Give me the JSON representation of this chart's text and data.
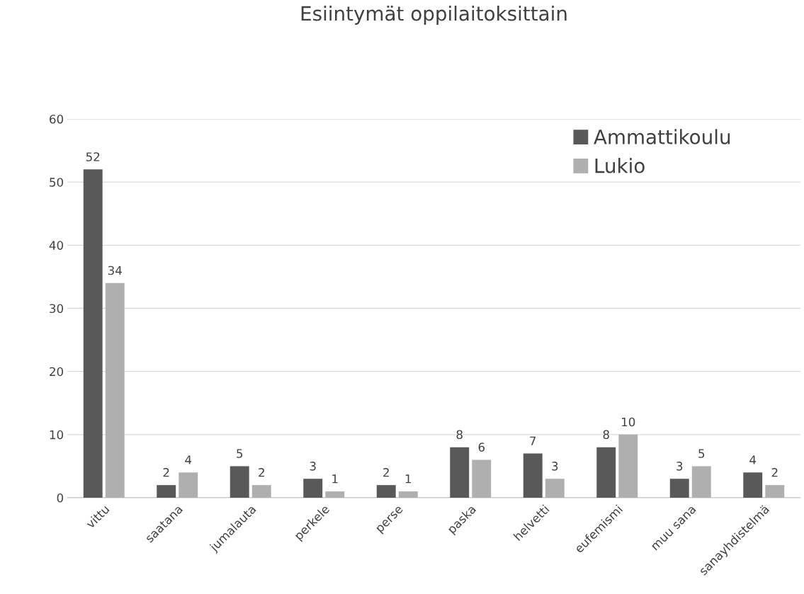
{
  "chart_data": {
    "type": "bar",
    "title": "Esiintymät oppilaitoksittain",
    "categories": [
      "vittu",
      "saatana",
      "jumalauta",
      "perkele",
      "perse",
      "paska",
      "helvetti",
      "eufemismi",
      "muu sana",
      "sanayhdistelmä"
    ],
    "series": [
      {
        "name": "Ammattikoulu",
        "color": "#595959",
        "values": [
          52,
          2,
          5,
          3,
          2,
          8,
          7,
          8,
          3,
          4
        ]
      },
      {
        "name": "Lukio",
        "color": "#afafaf",
        "values": [
          34,
          4,
          2,
          1,
          1,
          6,
          3,
          10,
          5,
          2
        ]
      }
    ],
    "ylim": [
      0,
      60
    ],
    "yticks": [
      0,
      10,
      20,
      30,
      40,
      50,
      60
    ],
    "grid": "y",
    "legend": "top right",
    "data_labels": true
  }
}
